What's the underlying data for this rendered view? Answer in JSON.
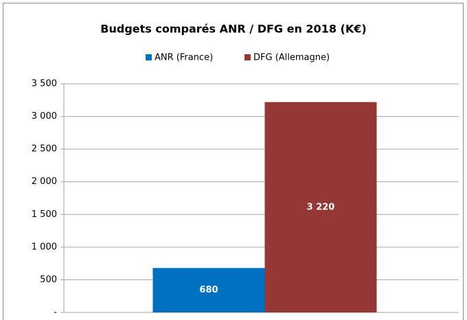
{
  "chart_data": {
    "type": "bar",
    "title": "Budgets comparés ANR / DFG en 2018 (K€)",
    "categories": [
      null
    ],
    "series": [
      {
        "name": "ANR (France)",
        "color": "#0070c0",
        "values": [
          680
        ],
        "value_labels": [
          "680"
        ]
      },
      {
        "name": "DFG (Allemagne)",
        "color": "#953735",
        "values": [
          3220
        ],
        "value_labels": [
          "3 220"
        ]
      }
    ],
    "ylim": [
      0,
      3500
    ],
    "yticks": [
      {
        "value": 0,
        "label": "-"
      },
      {
        "value": 500,
        "label": "500"
      },
      {
        "value": 1000,
        "label": "1 000"
      },
      {
        "value": 1500,
        "label": "1 500"
      },
      {
        "value": 2000,
        "label": "2 000"
      },
      {
        "value": 2500,
        "label": "2 500"
      },
      {
        "value": 3000,
        "label": "3 000"
      },
      {
        "value": 3500,
        "label": "3 500"
      }
    ],
    "grid": true,
    "legend": "top"
  }
}
